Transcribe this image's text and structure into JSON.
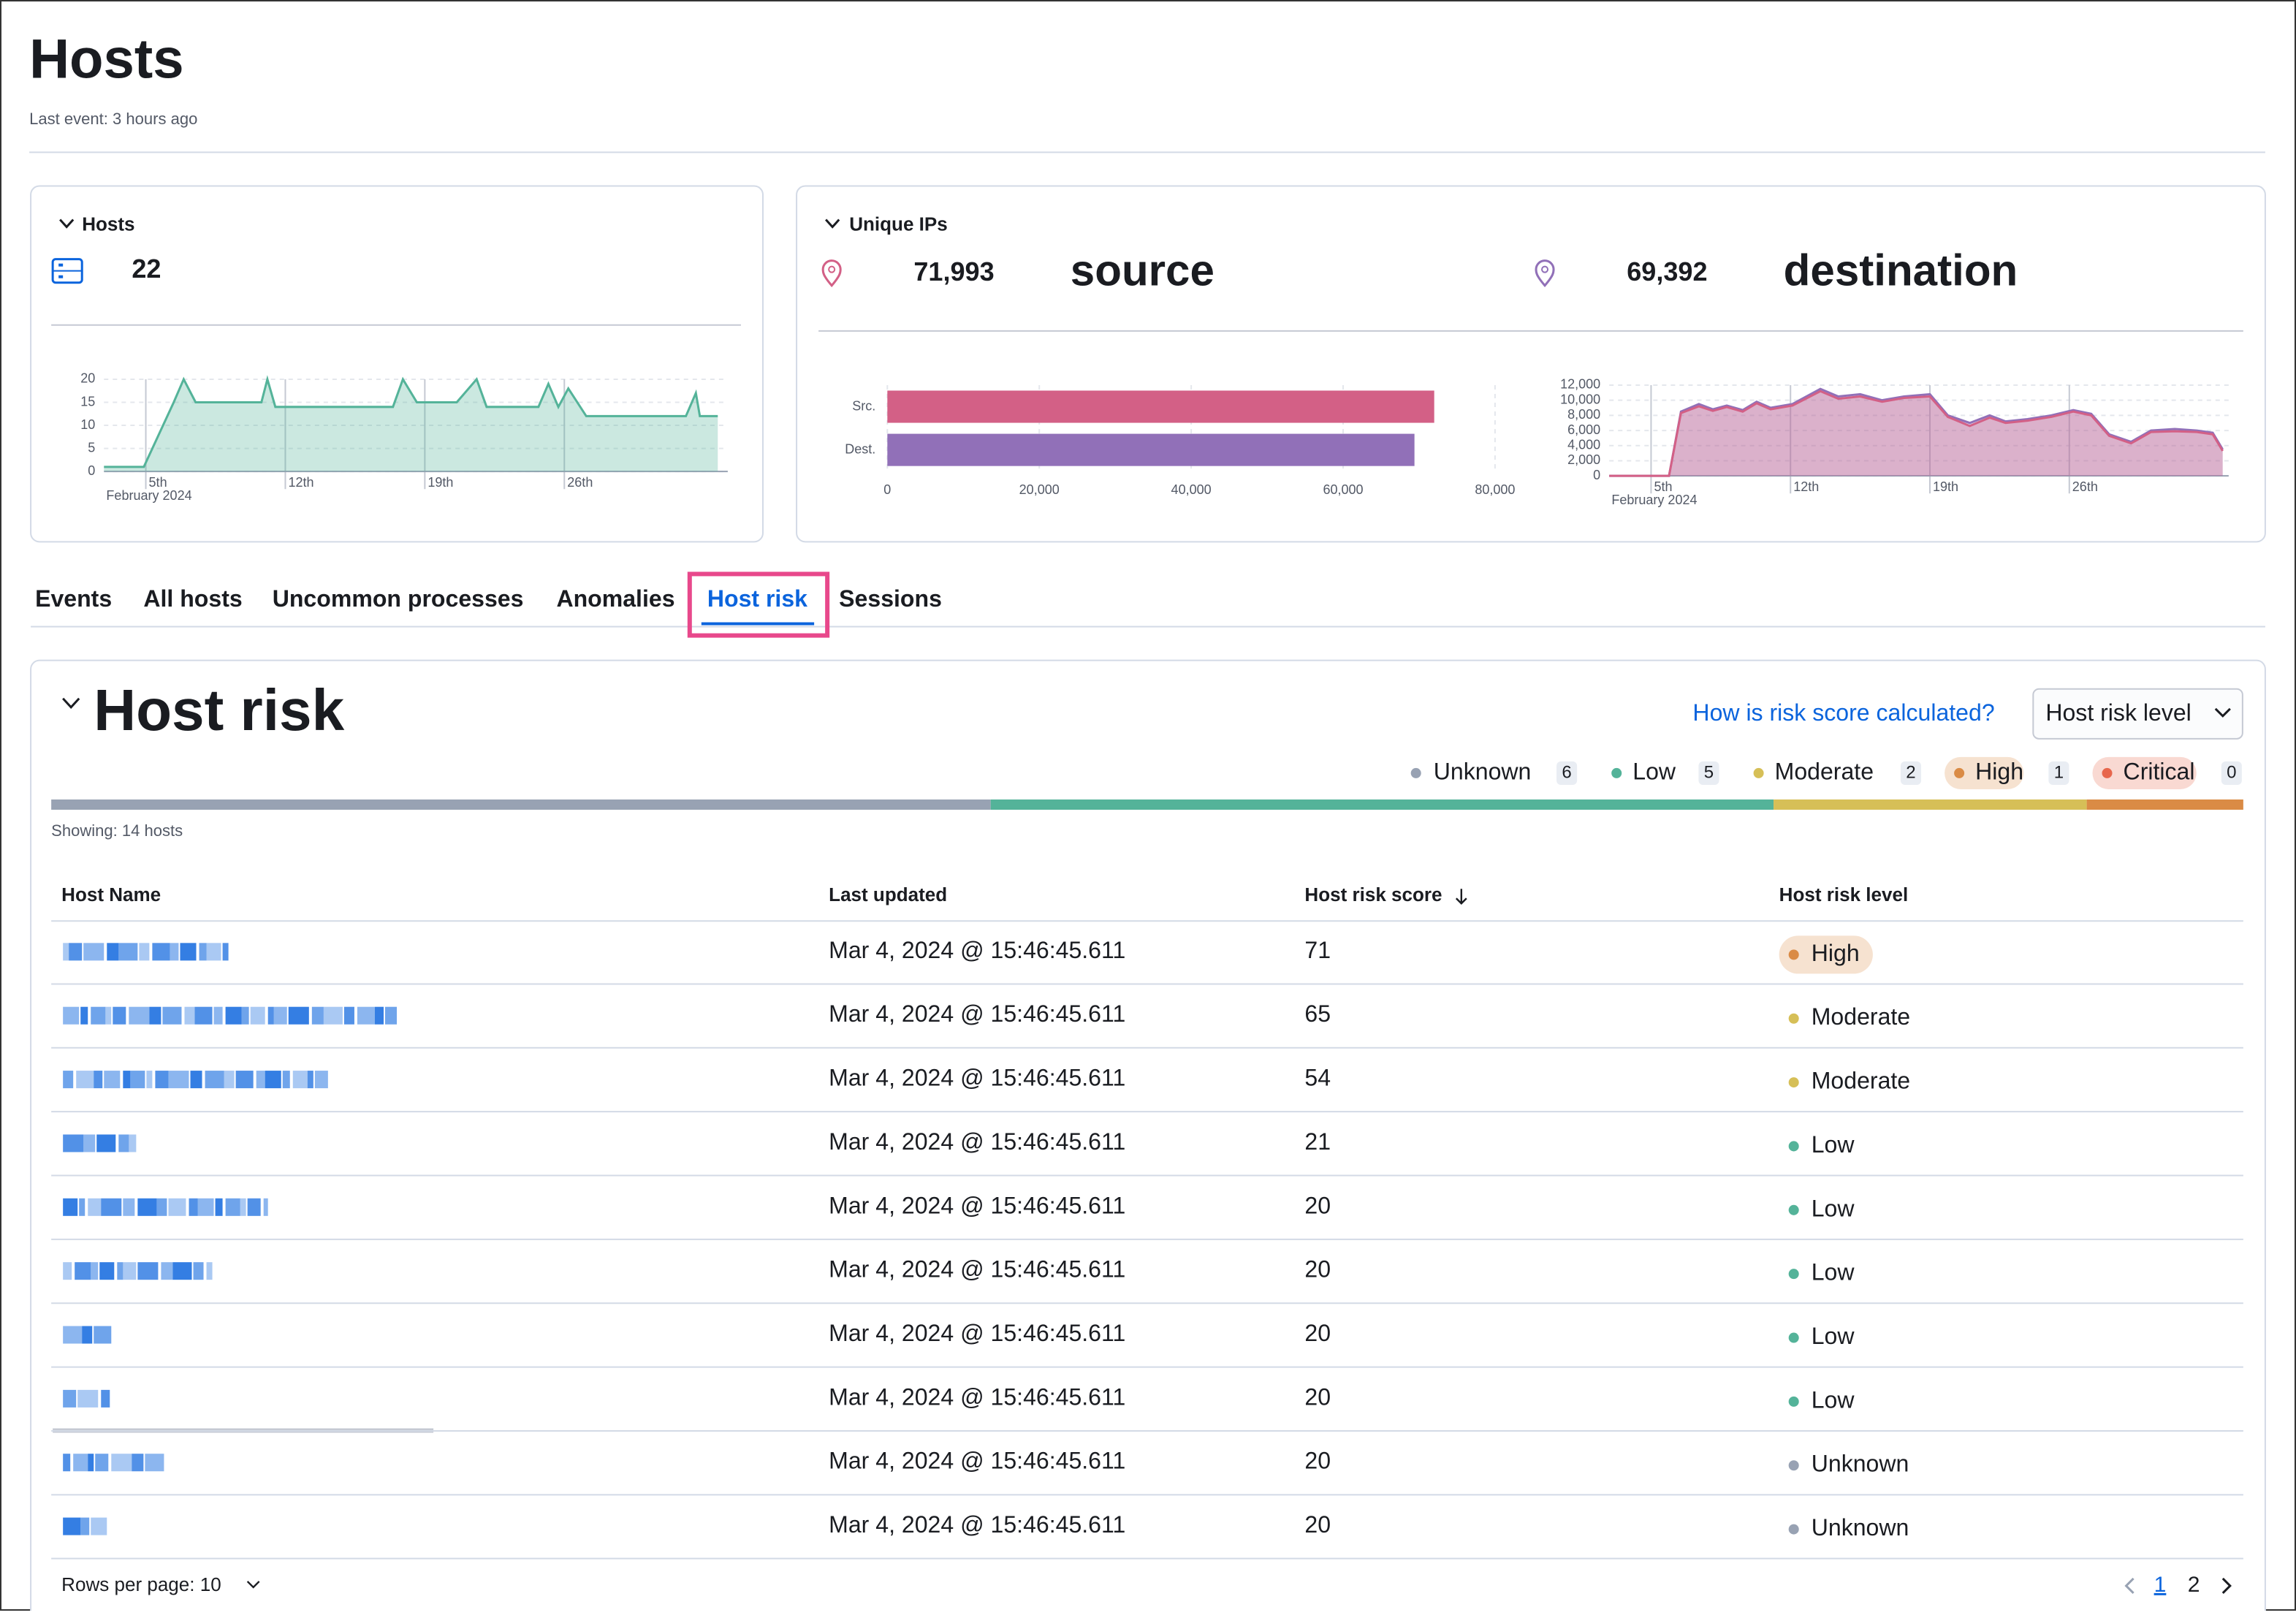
{
  "header": {
    "title": "Hosts",
    "subtitle": "Last event: 3 hours ago"
  },
  "hosts_panel": {
    "title": "Hosts",
    "count": "22",
    "chart": {
      "type": "area",
      "color": "#54b399",
      "x": [
        2.9,
        4.9,
        6.4,
        6.9,
        7.5,
        10.8,
        11.1,
        11.5,
        17.4,
        17.9,
        18.6,
        20.6,
        21.6,
        22.1,
        24.7,
        25.2,
        25.7,
        26.2,
        27.1,
        32.1,
        32.6,
        32.8,
        33.7
      ],
      "values": [
        1,
        1,
        15,
        20,
        15,
        15,
        20,
        14,
        14,
        20,
        15,
        15,
        20,
        14,
        14,
        19,
        14,
        18,
        12,
        12,
        17,
        12,
        12
      ],
      "xlim": [
        2.9,
        34.2
      ],
      "xticks": [
        {
          "value": 5,
          "label": "5th"
        },
        {
          "value": 12,
          "label": "12th"
        },
        {
          "value": 19,
          "label": "19th"
        },
        {
          "value": 26,
          "label": "26th"
        }
      ],
      "xlabel": "February 2024",
      "ylim": [
        0,
        20
      ],
      "yticks": [
        0,
        5,
        10,
        15,
        20
      ],
      "grid": true
    }
  },
  "ips_panel": {
    "title": "Unique IPs",
    "source_count": "71,993",
    "source_label": "source",
    "destination_count": "69,392",
    "destination_label": "destination",
    "bar_chart": {
      "type": "bar",
      "orientation": "horizontal",
      "categories": [
        "Src.",
        "Dest."
      ],
      "values": [
        71993,
        69392
      ],
      "colors": [
        "#d36086",
        "#9170b8"
      ],
      "xlim": [
        0,
        80000
      ],
      "xticks": [
        0,
        {
          "value": 20000,
          "label": "20,000"
        },
        {
          "value": 40000,
          "label": "40,000"
        },
        {
          "value": 60000,
          "label": "60,000"
        },
        {
          "value": 80000,
          "label": "80,000"
        }
      ],
      "grid": true
    },
    "area_chart": {
      "type": "area",
      "x": [
        2.9,
        5.9,
        6.5,
        7.4,
        8.1,
        8.8,
        9.6,
        10.3,
        11.0,
        12.1,
        13.5,
        14.4,
        15.5,
        16.6,
        17.7,
        19.0,
        19.9,
        21.0,
        22.0,
        22.8,
        23.9,
        25.1,
        26.2,
        27.1,
        28.0,
        29.1,
        30.1,
        31.3,
        32.4,
        33.2,
        33.7
      ],
      "series": [
        {
          "color": "#9170b8",
          "values": [
            0,
            0,
            8500,
            9500,
            8800,
            9300,
            8700,
            9800,
            9000,
            9500,
            11500,
            10500,
            10800,
            10000,
            10500,
            10800,
            8000,
            7000,
            8000,
            7200,
            7500,
            8000,
            8700,
            8200,
            5500,
            4500,
            6000,
            6200,
            6000,
            5700,
            3500
          ]
        },
        {
          "color": "#d36086",
          "values": [
            0,
            0,
            8300,
            9200,
            8600,
            9100,
            8500,
            9600,
            8800,
            9300,
            11200,
            10200,
            10500,
            9800,
            10300,
            10500,
            7800,
            6600,
            7700,
            7000,
            7300,
            7800,
            8500,
            8000,
            5300,
            4300,
            5800,
            5900,
            5800,
            5500,
            3300
          ]
        }
      ],
      "xlim": [
        2.9,
        34.0
      ],
      "xticks": [
        {
          "value": 5,
          "label": "5th"
        },
        {
          "value": 12,
          "label": "12th"
        },
        {
          "value": 19,
          "label": "19th"
        },
        {
          "value": 26,
          "label": "26th"
        }
      ],
      "xlabel": "February 2024",
      "ylim": [
        0,
        12000
      ],
      "yticks": [
        0,
        {
          "value": 2000,
          "label": "2,000"
        },
        {
          "value": 4000,
          "label": "4,000"
        },
        {
          "value": 6000,
          "label": "6,000"
        },
        {
          "value": 8000,
          "label": "8,000"
        },
        {
          "value": 10000,
          "label": "10,000"
        },
        {
          "value": 12000,
          "label": "12,000"
        }
      ],
      "grid": true
    }
  },
  "tabs": [
    "Events",
    "All hosts",
    "Uncommon processes",
    "Anomalies",
    "Host risk",
    "Sessions"
  ],
  "host_risk": {
    "title": "Host risk",
    "help_link": "How is risk score calculated?",
    "filter_label": "Host risk level",
    "levels": [
      {
        "name": "Unknown",
        "count": 6,
        "color": "#98a2b3"
      },
      {
        "name": "Low",
        "count": 5,
        "color": "#54b399"
      },
      {
        "name": "Moderate",
        "count": 2,
        "color": "#d6bf57"
      },
      {
        "name": "High",
        "count": 1,
        "color": "#da8b45"
      },
      {
        "name": "Critical",
        "count": 0,
        "color": "#e7664c"
      }
    ],
    "showing": "Showing: 14 hosts",
    "columns": [
      "Host Name",
      "Last updated",
      "Host risk score",
      "Host risk level"
    ],
    "rows": [
      {
        "last_updated": "Mar 4, 2024 @ 15:46:45.611",
        "risk_score": 71,
        "risk_level": "High"
      },
      {
        "last_updated": "Mar 4, 2024 @ 15:46:45.611",
        "risk_score": 65,
        "risk_level": "Moderate"
      },
      {
        "last_updated": "Mar 4, 2024 @ 15:46:45.611",
        "risk_score": 54,
        "risk_level": "Moderate"
      },
      {
        "last_updated": "Mar 4, 2024 @ 15:46:45.611",
        "risk_score": 21,
        "risk_level": "Low"
      },
      {
        "last_updated": "Mar 4, 2024 @ 15:46:45.611",
        "risk_score": 20,
        "risk_level": "Low"
      },
      {
        "last_updated": "Mar 4, 2024 @ 15:46:45.611",
        "risk_score": 20,
        "risk_level": "Low"
      },
      {
        "last_updated": "Mar 4, 2024 @ 15:46:45.611",
        "risk_score": 20,
        "risk_level": "Low"
      },
      {
        "last_updated": "Mar 4, 2024 @ 15:46:45.611",
        "risk_score": 20,
        "risk_level": "Low"
      },
      {
        "last_updated": "Mar 4, 2024 @ 15:46:45.611",
        "risk_score": 20,
        "risk_level": "Unknown"
      },
      {
        "last_updated": "Mar 4, 2024 @ 15:46:45.611",
        "risk_score": 20,
        "risk_level": "Unknown"
      }
    ],
    "rows_per_page": "Rows per page: 10",
    "pages": [
      "1",
      "2"
    ]
  }
}
